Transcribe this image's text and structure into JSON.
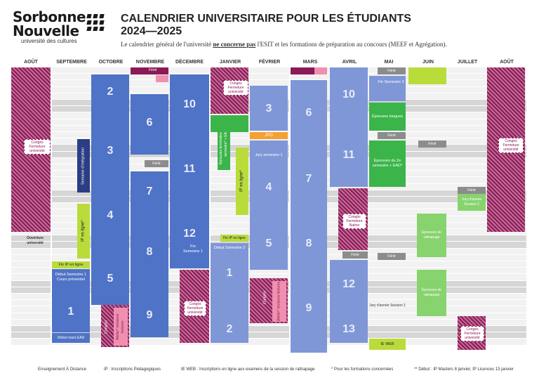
{
  "logo": {
    "line1": "Sorbonne",
    "line2": "Nouvelle",
    "tagline": "université des cultures"
  },
  "header": {
    "title_line1": "CALENDRIER UNIVERSITAIRE POUR LES ÉTUDIANTS",
    "title_line2": "2024—2025",
    "subtitle_pre": "Le calendrier général de l'université ",
    "subtitle_emph": "ne concerne pas",
    "subtitle_post": " l'ESIT et les formations de préparation au concours (MEEF et Agrégation)."
  },
  "months": [
    "AOÛT",
    "SEPTEMBRE",
    "OCTOBRE",
    "NOVEMBRE",
    "DÉCEMBRE",
    "JANVIER",
    "FÉVRIER",
    "MARS",
    "AVRIL",
    "MAI",
    "JUIN",
    "JUILLET",
    "AOÛT"
  ],
  "labels": {
    "ferie": "Férié",
    "conges": "Congés",
    "conges_fermeture": "Congés Fermeture université",
    "fermeture": "Fermeture université",
    "ouverture": "Ouverture université",
    "semaine_integration": "Semaine d'intégration",
    "ip_en_ligne": "IP en ligne*",
    "fin_ip": "Fin IP en ligne",
    "debut_s1": "Début Semestre 1 Cours présentiel",
    "debut_ead": "Début cours EAD",
    "fin_s1": "Fin Semestre 1",
    "debut_s2": "Début Semestre 2",
    "epreuves_s1": "Épreuves terminales du 1er semestre* + EAD*",
    "jpo": "JPO",
    "jury_s1": "Jury semestre 1",
    "atelier": "Atelier* révisions lectures",
    "conges_nation": "Congés Fermeture Nation",
    "fin_s2": "Fin Semestre 2",
    "epreuves_longues": "Épreuves longues",
    "epreuves_s2": "Épreuves du 2e semestre + EAD*",
    "jury_annee_s1": "Jury d'année Session 1",
    "ie_web": "IE WEB",
    "rattrapage": "Épreuves de rattrapage",
    "jury_annee_s2": "Jury d'année Session 2"
  },
  "week_numbers": {
    "septembre": [
      "1"
    ],
    "octobre": [
      "2",
      "3",
      "4",
      "5"
    ],
    "novembre": [
      "6",
      "7",
      "8",
      "9"
    ],
    "decembre": [
      "10",
      "11",
      "12"
    ],
    "janvier": [
      "1",
      "2"
    ],
    "fevrier": [
      "3",
      "4",
      "5"
    ],
    "mars": [
      "6",
      "7",
      "8",
      "9"
    ],
    "avril": [
      "10",
      "11",
      "12",
      "13"
    ]
  },
  "footer": [
    "Enseignement À Distance",
    "IP : Inscriptions Pédagogiques",
    "IE WEB : Inscriptions en ligne aux examens de la session de rattrapage",
    "* Pour les formations concernées",
    "** Début : IP Masters 8 janvier, IP Licences 13 janvier"
  ],
  "colors": {
    "primary": "#4f73c6",
    "purple": "#8b1a57",
    "green": "#3bb54a",
    "lime": "#b9dc3b",
    "orange": "#f5a033"
  }
}
